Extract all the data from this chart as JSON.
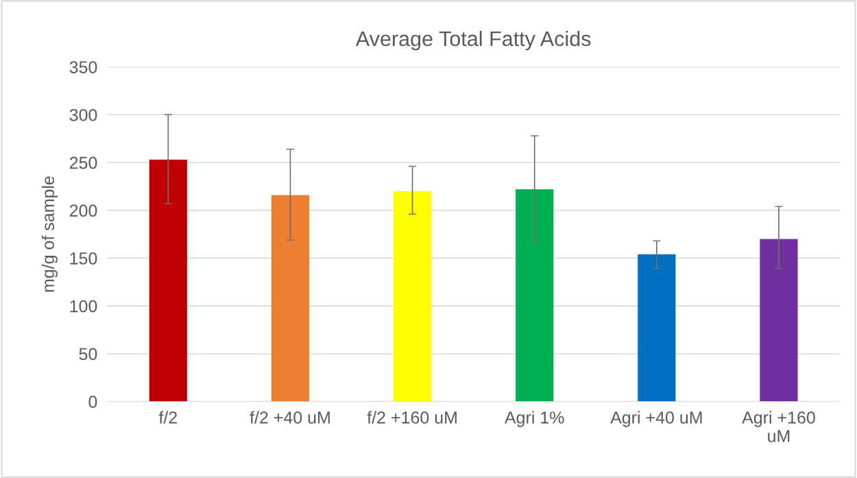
{
  "chart_data": {
    "type": "bar",
    "title": "Average Total Fatty Acids",
    "ylabel": "mg/g of sample",
    "categories": [
      "f/2",
      "f/2 +40 uM",
      "f/2 +160 uM",
      "Agri 1%",
      "Agri +40 uM",
      "Agri +160\nuM"
    ],
    "values": [
      253,
      216,
      220,
      222,
      154,
      170
    ],
    "colors": [
      "#c00000",
      "#ed7d31",
      "#ffff00",
      "#00b050",
      "#0070c0",
      "#7030a0"
    ],
    "errors": [
      [
        207,
        300
      ],
      [
        169,
        264
      ],
      [
        196,
        246
      ],
      [
        167,
        278
      ],
      [
        139,
        168
      ],
      [
        139,
        204
      ]
    ],
    "ylim": [
      0,
      350
    ],
    "yticks": [
      0,
      50,
      100,
      150,
      200,
      250,
      300,
      350
    ],
    "grid": "y"
  }
}
